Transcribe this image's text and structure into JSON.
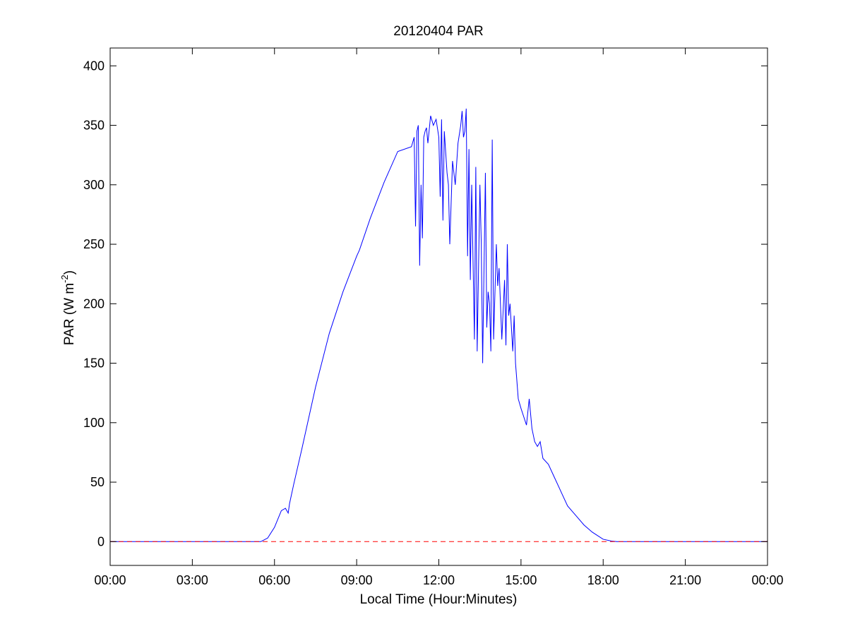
{
  "chart_data": {
    "type": "line",
    "title": "20120404 PAR",
    "xlabel": "Local Time (Hour:Minutes)",
    "ylabel": {
      "prefix": "PAR (W m",
      "superscript": "-2",
      "suffix": ")"
    },
    "xlim": [
      0,
      24
    ],
    "ylim": [
      -20,
      415
    ],
    "xticks": [
      0,
      3,
      6,
      9,
      12,
      15,
      18,
      21,
      24
    ],
    "xtick_labels": [
      "00:00",
      "03:00",
      "06:00",
      "09:00",
      "12:00",
      "15:00",
      "18:00",
      "21:00",
      "00:00"
    ],
    "yticks": [
      0,
      50,
      100,
      150,
      200,
      250,
      300,
      350,
      400
    ],
    "ytick_labels": [
      "0",
      "50",
      "100",
      "150",
      "200",
      "250",
      "300",
      "350",
      "400"
    ],
    "grid": false,
    "legend": "none",
    "series": [
      {
        "color": "#0000ff",
        "style": "solid",
        "x": [
          0,
          5.5,
          5.75,
          6.0,
          6.25,
          6.4,
          6.5,
          6.55,
          6.7,
          7.0,
          7.5,
          8.0,
          8.5,
          9.0,
          9.1,
          9.5,
          10.0,
          10.5,
          11.0,
          11.1,
          11.15,
          11.2,
          11.25,
          11.3,
          11.35,
          11.4,
          11.45,
          11.5,
          11.55,
          11.6,
          11.7,
          11.8,
          11.9,
          12.0,
          12.05,
          12.1,
          12.15,
          12.2,
          12.3,
          12.35,
          12.4,
          12.5,
          12.6,
          12.7,
          12.8,
          12.85,
          12.9,
          12.95,
          13.0,
          13.05,
          13.1,
          13.15,
          13.2,
          13.3,
          13.35,
          13.4,
          13.5,
          13.55,
          13.6,
          13.7,
          13.75,
          13.8,
          13.85,
          13.9,
          13.95,
          14.0,
          14.1,
          14.15,
          14.2,
          14.3,
          14.4,
          14.45,
          14.5,
          14.55,
          14.6,
          14.7,
          14.75,
          14.8,
          14.9,
          15.0,
          15.1,
          15.2,
          15.3,
          15.4,
          15.5,
          15.6,
          15.7,
          15.8,
          16.0,
          16.2,
          16.4,
          16.5,
          16.7,
          17.0,
          17.3,
          17.6,
          18.0,
          18.3,
          18.5,
          24
        ],
        "y": [
          0,
          0,
          3,
          12,
          26,
          28,
          24,
          32,
          48,
          78,
          130,
          175,
          210,
          240,
          245,
          272,
          302,
          328,
          332,
          340,
          265,
          345,
          350,
          232,
          300,
          255,
          340,
          345,
          348,
          335,
          358,
          350,
          355,
          340,
          290,
          355,
          270,
          345,
          310,
          300,
          250,
          320,
          300,
          335,
          350,
          362,
          340,
          345,
          364,
          240,
          330,
          220,
          300,
          170,
          315,
          160,
          300,
          250,
          150,
          310,
          180,
          210,
          200,
          160,
          338,
          170,
          250,
          215,
          230,
          170,
          220,
          165,
          250,
          190,
          200,
          160,
          190,
          150,
          120,
          112,
          105,
          98,
          120,
          95,
          84,
          80,
          84,
          70,
          65,
          55,
          45,
          40,
          30,
          22,
          14,
          8,
          2,
          0.5,
          0,
          0
        ]
      },
      {
        "color": "#ff0000",
        "style": "dashed",
        "x": [
          0,
          24
        ],
        "y": [
          0,
          0
        ]
      }
    ]
  }
}
